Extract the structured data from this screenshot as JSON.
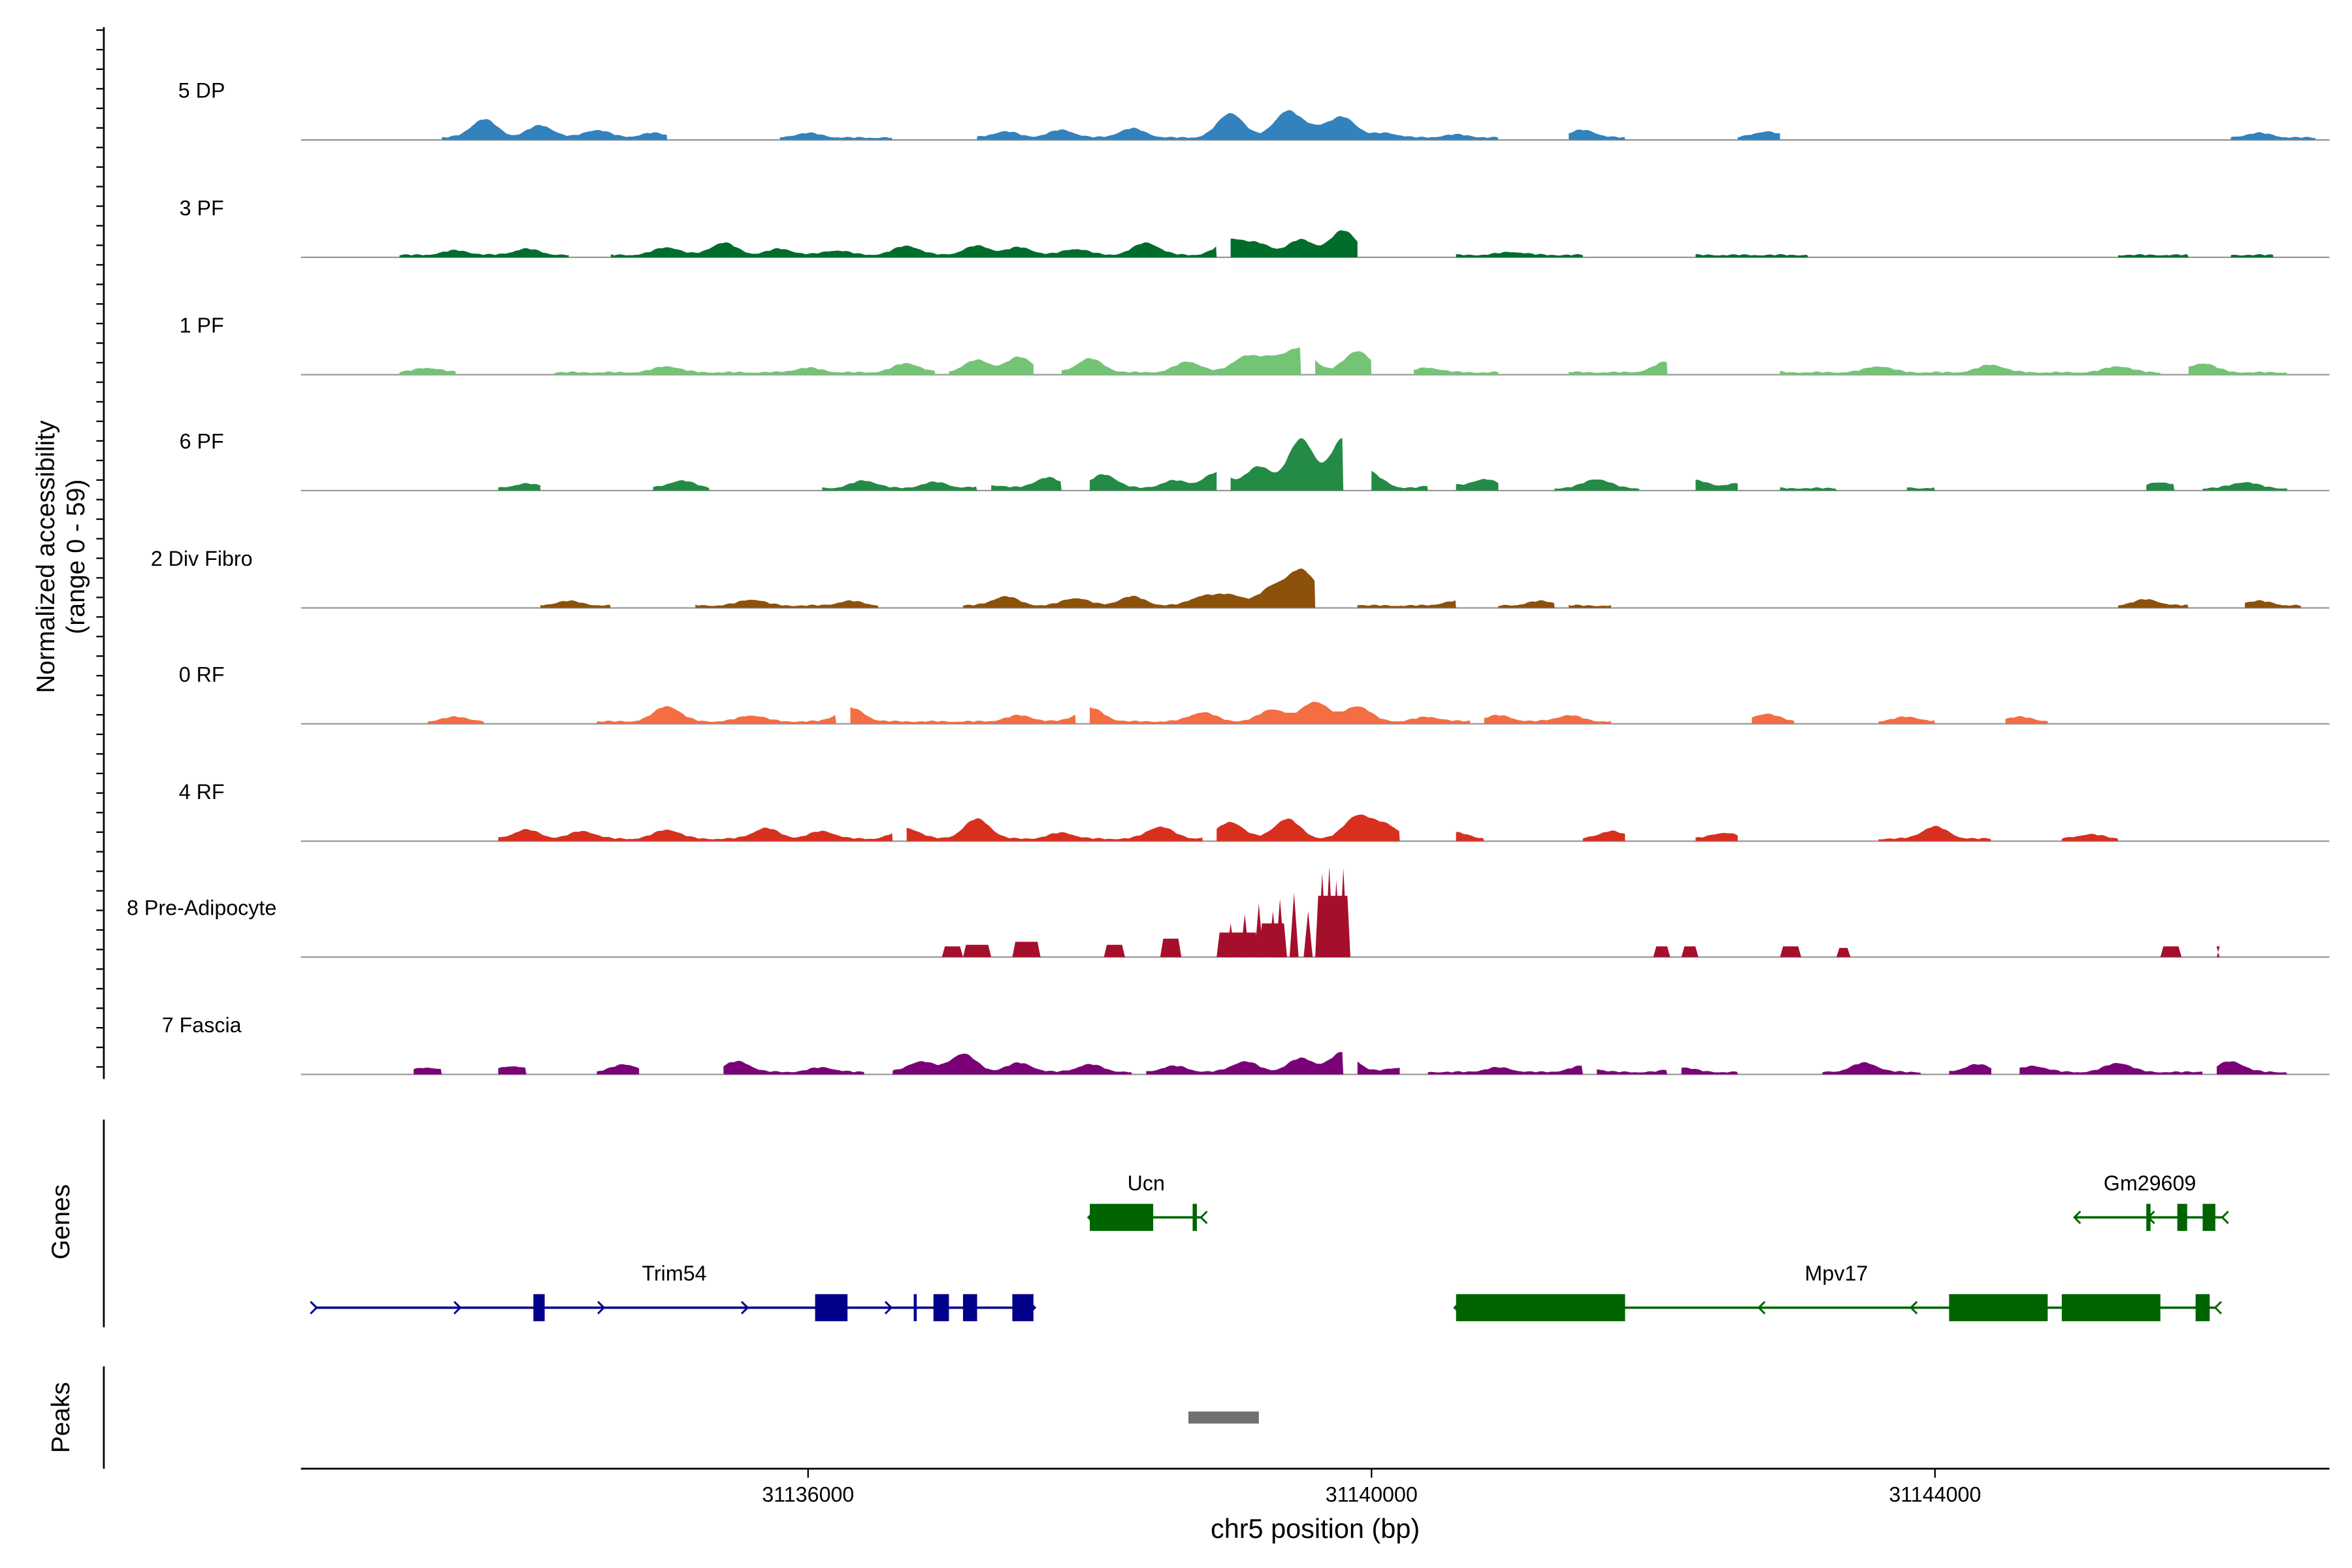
{
  "chart_data": {
    "type": "area",
    "chrom": "chr5",
    "xlim": [
      31132400,
      31146800
    ],
    "xlabel": "chr5 position (bp)",
    "xticks": [
      31136000,
      31140000,
      31144000
    ],
    "xtick_labels": [
      "31136000",
      "31140000",
      "31144000"
    ],
    "ylabel_line1": "Normalized accessibility",
    "ylabel_line2": "(range 0 - 59)",
    "genes_label": "Genes",
    "peaks_label": "Peaks",
    "tracks": [
      {
        "name": "5 DP",
        "color": "#3182bd",
        "segments": [
          [
            31133400,
            31135000
          ],
          [
            31135800,
            31136600
          ],
          [
            31137200,
            31140900
          ],
          [
            31141400,
            31141800
          ],
          [
            31142600,
            31142900
          ],
          [
            31146100,
            31146700
          ]
        ],
        "bumps": [
          [
            31133700,
            12
          ],
          [
            31134100,
            8
          ],
          [
            31134500,
            5
          ],
          [
            31134900,
            3
          ],
          [
            31135400,
            3
          ],
          [
            31136000,
            3
          ],
          [
            31137400,
            4
          ],
          [
            31137800,
            5
          ],
          [
            31138300,
            6
          ],
          [
            31139000,
            16
          ],
          [
            31139400,
            17
          ],
          [
            31139800,
            13
          ],
          [
            31139600,
            6
          ],
          [
            31140100,
            3
          ],
          [
            31140600,
            2
          ],
          [
            31141500,
            5
          ],
          [
            31142800,
            4
          ],
          [
            31143600,
            3
          ],
          [
            31144000,
            3
          ],
          [
            31144900,
            4
          ],
          [
            31145700,
            2
          ],
          [
            31146300,
            3
          ]
        ]
      },
      {
        "name": "3 PF",
        "color": "#006d2c",
        "segments": [
          [
            31133100,
            31134300
          ],
          [
            31134600,
            31138900
          ],
          [
            31139000,
            31139900
          ],
          [
            31140600,
            31141500
          ],
          [
            31142300,
            31143100
          ],
          [
            31145300,
            31145800
          ],
          [
            31146100,
            31146400
          ]
        ],
        "bumps": [
          [
            31133500,
            3
          ],
          [
            31134000,
            4
          ],
          [
            31135000,
            5
          ],
          [
            31135400,
            8
          ],
          [
            31135800,
            4
          ],
          [
            31136200,
            3
          ],
          [
            31136700,
            6
          ],
          [
            31137200,
            6
          ],
          [
            31137500,
            5
          ],
          [
            31137900,
            4
          ],
          [
            31138400,
            8
          ],
          [
            31139000,
            10
          ],
          [
            31139500,
            10
          ],
          [
            31139800,
            16
          ],
          [
            31139200,
            7
          ],
          [
            31140100,
            2
          ],
          [
            31141000,
            2
          ]
        ]
      },
      {
        "name": "1 PF",
        "color": "#74c476",
        "segments": [
          [
            31133100,
            31133500
          ],
          [
            31134200,
            31136900
          ],
          [
            31137000,
            31137600
          ],
          [
            31137800,
            31139500
          ],
          [
            31139600,
            31140000
          ],
          [
            31140300,
            31140900
          ],
          [
            31141400,
            31142100
          ],
          [
            31142900,
            31145600
          ],
          [
            31145800,
            31146500
          ]
        ],
        "bumps": [
          [
            31133300,
            3
          ],
          [
            31135000,
            4
          ],
          [
            31136000,
            3
          ],
          [
            31136700,
            6
          ],
          [
            31137200,
            8
          ],
          [
            31137500,
            10
          ],
          [
            31138000,
            9
          ],
          [
            31138700,
            7
          ],
          [
            31139100,
            10
          ],
          [
            31139500,
            15
          ],
          [
            31139900,
            14
          ],
          [
            31139300,
            9
          ],
          [
            31140400,
            3
          ],
          [
            31141200,
            4
          ],
          [
            31142100,
            7
          ],
          [
            31142700,
            4
          ],
          [
            31143600,
            4
          ],
          [
            31144400,
            5
          ],
          [
            31145300,
            4
          ],
          [
            31145900,
            6
          ]
        ]
      },
      {
        "name": "6 PF",
        "color": "#238b45",
        "segments": [
          [
            31133800,
            31134100
          ],
          [
            31134900,
            31135300
          ],
          [
            31136100,
            31137200
          ],
          [
            31137300,
            31137800
          ],
          [
            31138000,
            31138900
          ],
          [
            31139000,
            31139800
          ],
          [
            31140000,
            31140400
          ],
          [
            31140600,
            31140900
          ],
          [
            31141300,
            31141900
          ],
          [
            31142300,
            31142600
          ],
          [
            31142900,
            31143300
          ],
          [
            31143800,
            31144000
          ],
          [
            31145500,
            31145700
          ],
          [
            31145900,
            31146500
          ]
        ],
        "bumps": [
          [
            31134000,
            3
          ],
          [
            31135100,
            5
          ],
          [
            31135900,
            2
          ],
          [
            31136400,
            5
          ],
          [
            31136900,
            4
          ],
          [
            31137300,
            2
          ],
          [
            31137700,
            7
          ],
          [
            31138100,
            9
          ],
          [
            31138600,
            5
          ],
          [
            31138900,
            10
          ],
          [
            31139200,
            14
          ],
          [
            31139500,
            32
          ],
          [
            31139800,
            32
          ],
          [
            31140000,
            8
          ],
          [
            31140500,
            3
          ],
          [
            31140800,
            6
          ],
          [
            31141600,
            6
          ],
          [
            31142300,
            5
          ],
          [
            31142600,
            3
          ],
          [
            31143600,
            7
          ],
          [
            31144200,
            4
          ],
          [
            31144800,
            3
          ],
          [
            31145600,
            4
          ],
          [
            31146200,
            4
          ]
        ]
      },
      {
        "name": "2 Div Fibro",
        "color": "#8c510a",
        "segments": [
          [
            31134100,
            31134600
          ],
          [
            31135200,
            31136500
          ],
          [
            31137100,
            31139600
          ],
          [
            31139900,
            31140600
          ],
          [
            31140900,
            31141300
          ],
          [
            31141400,
            31141700
          ],
          [
            31145300,
            31145800
          ],
          [
            31146200,
            31146600
          ]
        ],
        "bumps": [
          [
            31134300,
            3
          ],
          [
            31135000,
            4
          ],
          [
            31135600,
            4
          ],
          [
            31136300,
            3
          ],
          [
            31137400,
            6
          ],
          [
            31137900,
            5
          ],
          [
            31138300,
            6
          ],
          [
            31138800,
            6
          ],
          [
            31139000,
            7
          ],
          [
            31139300,
            12
          ],
          [
            31139500,
            22
          ],
          [
            31139700,
            7
          ],
          [
            31140600,
            3
          ],
          [
            31141200,
            3
          ],
          [
            31145500,
            4
          ],
          [
            31146000,
            3
          ],
          [
            31146300,
            3
          ]
        ]
      },
      {
        "name": "0 RF",
        "color": "#f46d43",
        "segments": [
          [
            31133300,
            31133700
          ],
          [
            31134500,
            31136200
          ],
          [
            31136300,
            31137900
          ],
          [
            31138000,
            31140700
          ],
          [
            31140800,
            31141700
          ],
          [
            31142700,
            31143000
          ],
          [
            31143600,
            31144000
          ],
          [
            31144500,
            31144800
          ]
        ],
        "bumps": [
          [
            31133500,
            3
          ],
          [
            31135000,
            10
          ],
          [
            31135600,
            4
          ],
          [
            31136300,
            9
          ],
          [
            31137500,
            4
          ],
          [
            31138000,
            9
          ],
          [
            31138800,
            6
          ],
          [
            31139300,
            8
          ],
          [
            31139600,
            13
          ],
          [
            31139900,
            10
          ],
          [
            31140400,
            3
          ],
          [
            31140900,
            4
          ],
          [
            31141400,
            4
          ],
          [
            31142800,
            5
          ],
          [
            31143800,
            3
          ],
          [
            31144600,
            3
          ]
        ]
      },
      {
        "name": "4 RF",
        "color": "#d7301f",
        "segments": [
          [
            31133800,
            31136600
          ],
          [
            31136700,
            31138800
          ],
          [
            31138900,
            31140200
          ],
          [
            31140600,
            31140800
          ],
          [
            31141500,
            31141800
          ],
          [
            31142300,
            31142600
          ],
          [
            31143600,
            31144400
          ],
          [
            31144900,
            31145300
          ]
        ],
        "bumps": [
          [
            31134000,
            6
          ],
          [
            31134400,
            5
          ],
          [
            31135000,
            6
          ],
          [
            31135700,
            7
          ],
          [
            31136100,
            5
          ],
          [
            31136700,
            7
          ],
          [
            31137200,
            13
          ],
          [
            31137800,
            4
          ],
          [
            31138500,
            8
          ],
          [
            31139000,
            11
          ],
          [
            31139400,
            13
          ],
          [
            31139900,
            15
          ],
          [
            31140100,
            9
          ],
          [
            31140600,
            4
          ],
          [
            31141700,
            5
          ],
          [
            31142500,
            4
          ],
          [
            31144000,
            8
          ],
          [
            31144600,
            4
          ],
          [
            31145100,
            3
          ]
        ]
      }
    ],
    "preadipo": {
      "name": "8 Pre-Adipocyte",
      "color": "#a50f2c",
      "blocks": [
        [
          31136950,
          31137100,
          7
        ],
        [
          31137100,
          31137300,
          8
        ],
        [
          31137450,
          31137650,
          10
        ],
        [
          31138100,
          31138250,
          8
        ],
        [
          31138500,
          31138650,
          12
        ],
        [
          31138900,
          31139200,
          16
        ],
        [
          31139200,
          31139400,
          22
        ],
        [
          31139600,
          31139850,
          40
        ],
        [
          31142000,
          31142120,
          7
        ],
        [
          31142200,
          31142320,
          7
        ],
        [
          31142900,
          31143050,
          7
        ],
        [
          31143300,
          31143400,
          6
        ],
        [
          31145600,
          31145750,
          7
        ],
        [
          31146000,
          31146020,
          7
        ]
      ],
      "spikes": [
        [
          31139000,
          22
        ],
        [
          31139100,
          28
        ],
        [
          31139200,
          35
        ],
        [
          31139300,
          30
        ],
        [
          31139350,
          38
        ],
        [
          31139450,
          42
        ],
        [
          31139550,
          30
        ],
        [
          31139650,
          55
        ],
        [
          31139700,
          59
        ],
        [
          31139750,
          50
        ],
        [
          31139800,
          58
        ]
      ]
    },
    "fascia": {
      "name": "7 Fascia",
      "color": "#7a0177",
      "segments": [
        [
          31133200,
          31133400
        ],
        [
          31133800,
          31134000
        ],
        [
          31134500,
          31134800
        ],
        [
          31135400,
          31136400
        ],
        [
          31136600,
          31138300
        ],
        [
          31138400,
          31139800
        ],
        [
          31139900,
          31140200
        ],
        [
          31140400,
          31141500
        ],
        [
          31141600,
          31142100
        ],
        [
          31142200,
          31142600
        ],
        [
          31143200,
          31143900
        ],
        [
          31144100,
          31144400
        ],
        [
          31144600,
          31145900
        ],
        [
          31146000,
          31146500
        ]
      ],
      "bumps": [
        [
          31133300,
          3
        ],
        [
          31133900,
          4
        ],
        [
          31134700,
          5
        ],
        [
          31135500,
          7
        ],
        [
          31136100,
          3
        ],
        [
          31136800,
          7
        ],
        [
          31137100,
          12
        ],
        [
          31137500,
          6
        ],
        [
          31138000,
          5
        ],
        [
          31138600,
          4
        ],
        [
          31139100,
          7
        ],
        [
          31139500,
          9
        ],
        [
          31139800,
          13
        ],
        [
          31140200,
          3
        ],
        [
          31140900,
          3
        ],
        [
          31141500,
          4
        ],
        [
          31142200,
          3
        ],
        [
          31143500,
          6
        ],
        [
          31144300,
          5
        ],
        [
          31144700,
          4
        ],
        [
          31145300,
          6
        ],
        [
          31146100,
          7
        ]
      ]
    },
    "genes": [
      {
        "name": "Ucn",
        "strand": "-",
        "row": 0,
        "color": "#006400",
        "start": 31138000,
        "end": 31138800,
        "exons": [
          [
            31138000,
            31138450
          ],
          [
            31138730,
            31138760
          ]
        ]
      },
      {
        "name": "Gm29609",
        "strand": "-",
        "row": 0,
        "color": "#006400",
        "start": 31145000,
        "end": 31146050,
        "exons": [
          [
            31145500,
            31145530
          ],
          [
            31145720,
            31145790
          ],
          [
            31145900,
            31145990
          ]
        ]
      },
      {
        "name": "Trim54",
        "strand": "+",
        "row": 1,
        "color": "#00008b",
        "start": 31132500,
        "end": 31137600,
        "exons": [
          [
            31134050,
            31134130
          ],
          [
            31136050,
            31136280
          ],
          [
            31136750,
            31136770
          ],
          [
            31136890,
            31137000
          ],
          [
            31137100,
            31137200
          ],
          [
            31137450,
            31137600
          ]
        ]
      },
      {
        "name": "Mpv17",
        "strand": "-",
        "row": 1,
        "color": "#006400",
        "start": 31140600,
        "end": 31146000,
        "exons": [
          [
            31140600,
            31141800
          ],
          [
            31144100,
            31144800
          ],
          [
            31144900,
            31145600
          ],
          [
            31145850,
            31145950
          ]
        ]
      }
    ],
    "peaks": [
      [
        31138700,
        31139200
      ]
    ],
    "peaks_color": "#707070"
  }
}
